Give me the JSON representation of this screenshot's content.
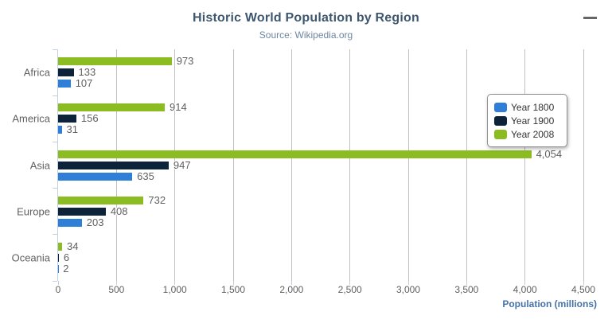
{
  "header": {
    "title": "Historic World Population by Region",
    "subtitle": "Source: Wikipedia.org"
  },
  "context_menu": {
    "icon": "hamburger-icon",
    "color": "#666666"
  },
  "chart_data": {
    "type": "bar",
    "title": "Historic World Population by Region",
    "subtitle": "Source: Wikipedia.org",
    "categories": [
      "Africa",
      "America",
      "Asia",
      "Europe",
      "Oceania"
    ],
    "series": [
      {
        "name": "Year 1800",
        "color": "#2f7ed8",
        "values": [
          107,
          31,
          635,
          203,
          2
        ]
      },
      {
        "name": "Year 1900",
        "color": "#0d233a",
        "values": [
          133,
          156,
          947,
          408,
          6
        ]
      },
      {
        "name": "Year 2008",
        "color": "#8bbc21",
        "values": [
          973,
          914,
          4054,
          732,
          34
        ]
      }
    ],
    "bar_order_top_to_bottom": [
      "Year 2008",
      "Year 1900",
      "Year 1800"
    ],
    "data_labels_shown": true,
    "xlabel": "Population (millions)",
    "ylabel": "",
    "xlim": [
      0,
      4500
    ],
    "xticks": [
      0,
      500,
      1000,
      1500,
      2000,
      2500,
      3000,
      3500,
      4000,
      4500
    ],
    "grid": true,
    "legend": {
      "position": "floating-right",
      "entries": [
        "Year 1800",
        "Year 1900",
        "Year 2008"
      ]
    },
    "colors": {
      "grid_line": "#C0C0C0",
      "category_axis_line": "#C0D0E0",
      "label_text": "#606060",
      "title_text": "#3E576F",
      "subtitle_text": "#6D869F",
      "axis_title_text": "#4572A7",
      "legend_text": "#333333",
      "legend_border": "#909090"
    }
  }
}
